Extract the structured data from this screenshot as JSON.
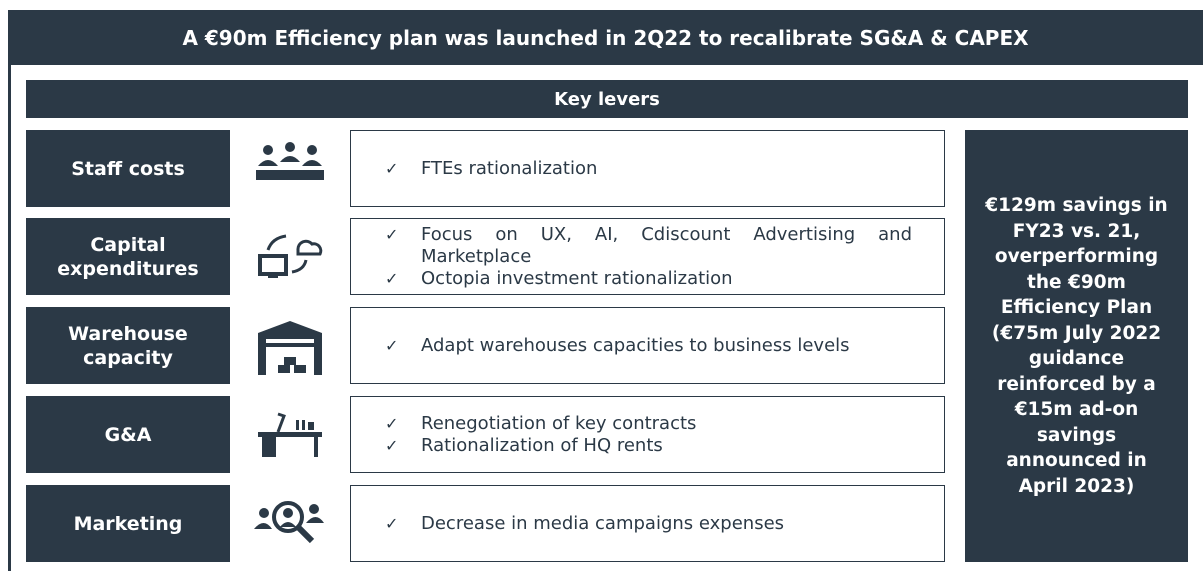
{
  "header": {
    "title": "A €90m Efficiency plan was launched in 2Q22 to recalibrate SG&A & CAPEX",
    "subtitle": "Key levers"
  },
  "check": "✓",
  "levers": [
    {
      "label": "Staff costs",
      "items": [
        "FTEs rationalization"
      ]
    },
    {
      "label": "Capital expenditures",
      "items": [
        "Focus on UX, AI, Cdiscount Advertising and Marketplace",
        "Octopia investment rationalization"
      ]
    },
    {
      "label": "Warehouse capacity",
      "items": [
        "Adapt warehouses capacities to business levels"
      ]
    },
    {
      "label": "G&A",
      "items": [
        "Renegotiation of key contracts",
        "Rationalization of HQ rents"
      ]
    },
    {
      "label": "Marketing",
      "items": [
        "Decrease in media campaigns expenses"
      ]
    }
  ],
  "summary": "€129m savings in FY23 vs. 21, overperforming the €90m Efficiency Plan (€75m July 2022 guidance reinforced by a €15m ad-on savings announced in April 2023)"
}
